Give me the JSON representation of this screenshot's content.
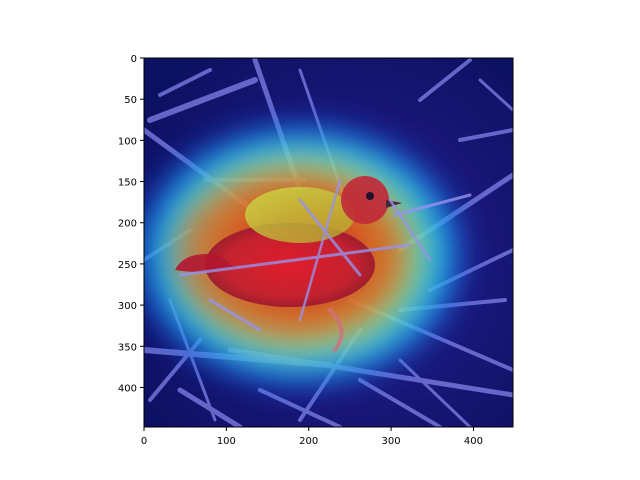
{
  "figure": {
    "background_color": "#ffffff",
    "image_description_note": "",
    "colormap": "jet",
    "overlay_alpha": 0.55
  },
  "axes": {
    "x_range": [
      0,
      448
    ],
    "y_range": [
      0,
      448
    ],
    "y_inverted": true,
    "grid": false,
    "x_ticks": [
      0,
      100,
      200,
      300,
      400
    ],
    "y_ticks": [
      0,
      50,
      100,
      150,
      200,
      250,
      300,
      350,
      400
    ]
  },
  "heatmap": {
    "peak_center_data": [
      290,
      255
    ],
    "secondary_peak_data": [
      245,
      235
    ]
  }
}
